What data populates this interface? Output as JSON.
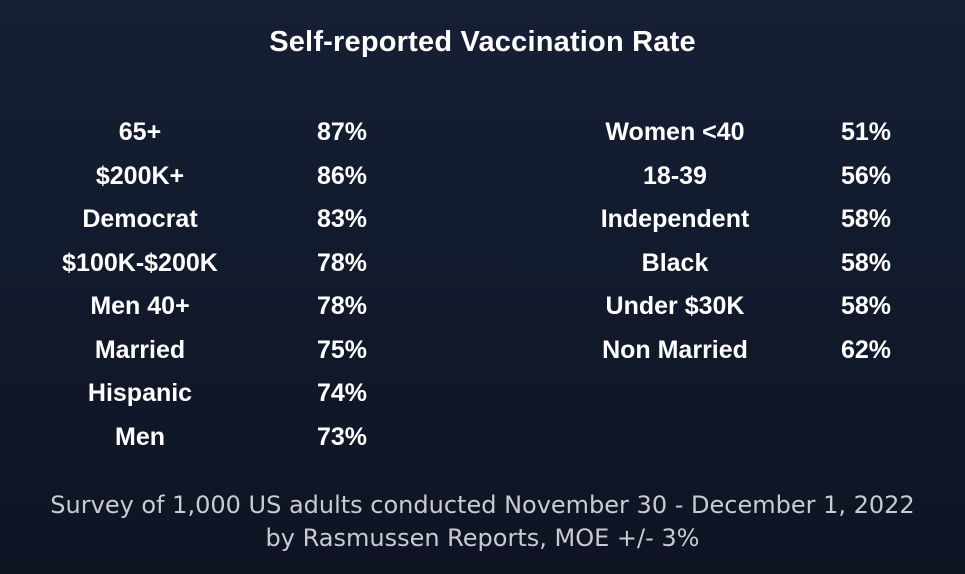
{
  "title": "Self-reported Vaccination Rate",
  "footer": {
    "line1": "Survey of 1,000 US adults conducted November 30 - December 1, 2022",
    "line2": "by Rasmussen Reports, MOE +/- 3%"
  },
  "colors": {
    "background_top": "#161f34",
    "background_bottom": "#0d1422",
    "title_text": "#ffffff",
    "stat_text": "#ffffff",
    "footer_text": "#c8cbd4"
  },
  "chart_data": {
    "type": "table",
    "title": "Self-reported Vaccination Rate",
    "unit": "percent",
    "source_note": "Survey of 1,000 US adults conducted November 30 - December 1, 2022 by Rasmussen Reports, MOE +/- 3%",
    "groups": [
      {
        "name": "left-column",
        "rows": [
          {
            "label": "65+",
            "value": "87%",
            "pct": 87
          },
          {
            "label": "$200K+",
            "value": "86%",
            "pct": 86
          },
          {
            "label": "Democrat",
            "value": "83%",
            "pct": 83
          },
          {
            "label": "$100K-$200K",
            "value": "78%",
            "pct": 78
          },
          {
            "label": "Men 40+",
            "value": "78%",
            "pct": 78
          },
          {
            "label": "Married",
            "value": "75%",
            "pct": 75
          },
          {
            "label": "Hispanic",
            "value": "74%",
            "pct": 74
          },
          {
            "label": "Men",
            "value": "73%",
            "pct": 73
          }
        ]
      },
      {
        "name": "right-column",
        "rows": [
          {
            "label": "Women <40",
            "value": "51%",
            "pct": 51
          },
          {
            "label": "18-39",
            "value": "56%",
            "pct": 56
          },
          {
            "label": "Independent",
            "value": "58%",
            "pct": 58
          },
          {
            "label": "Black",
            "value": "58%",
            "pct": 58
          },
          {
            "label": "Under $30K",
            "value": "58%",
            "pct": 58
          },
          {
            "label": "Non Married",
            "value": "62%",
            "pct": 62
          }
        ]
      }
    ]
  }
}
